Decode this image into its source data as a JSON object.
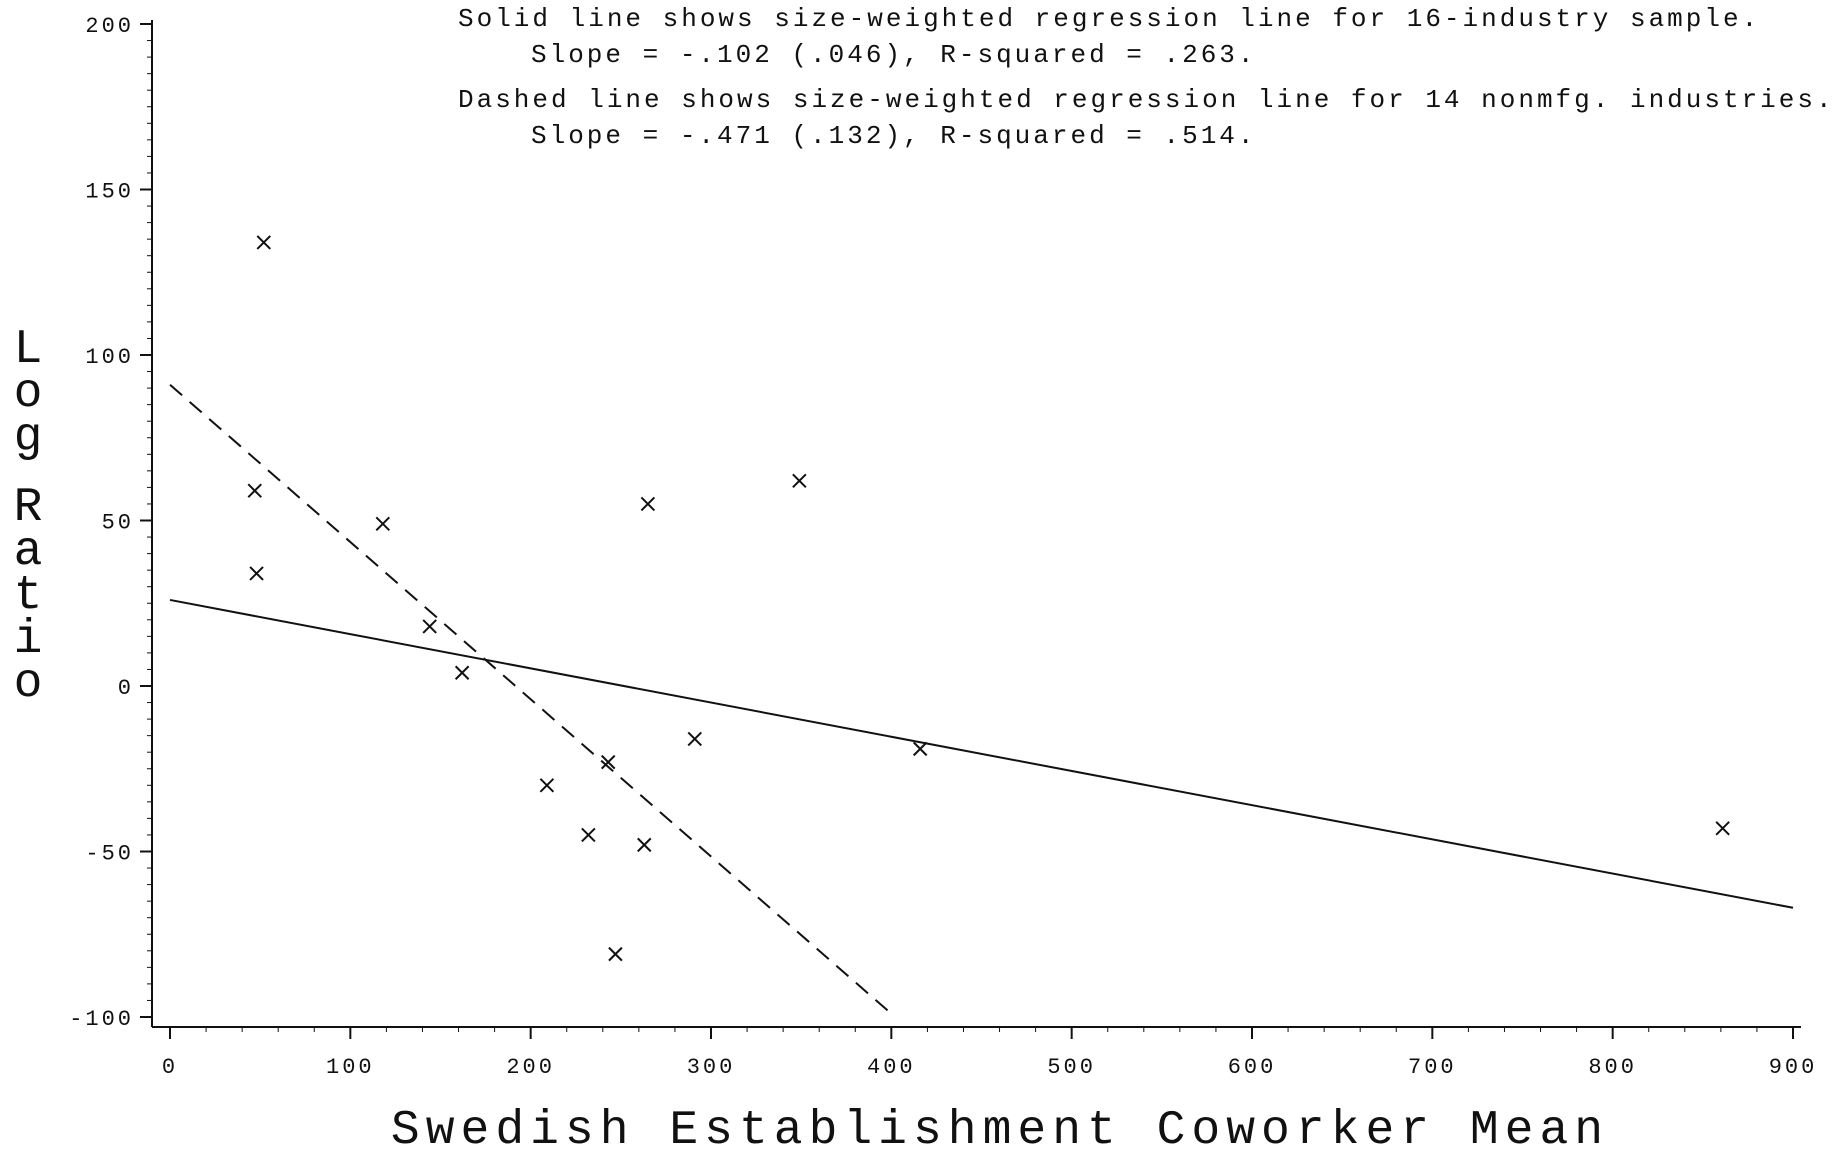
{
  "chart_data": {
    "type": "scatter",
    "xlabel": "Swedish Establishment Coworker Mean",
    "ylabel": "Log Ratio",
    "xlim": [
      0,
      900
    ],
    "ylim": [
      -100,
      200
    ],
    "x_ticks": [
      0,
      100,
      200,
      300,
      400,
      500,
      600,
      700,
      800,
      900
    ],
    "y_ticks": [
      -100,
      -50,
      0,
      50,
      100,
      150,
      200
    ],
    "annotations": [
      "Solid line shows size-weighted regression line for 16-industry sample.",
      "Slope = -.102 (.046), R-squared = .263.",
      "Dashed line shows size-weighted regression line for 14 nonmfg. industries.",
      "Slope = -.471 (.132), R-squared = .514."
    ],
    "points": [
      {
        "x": 52,
        "y": 134
      },
      {
        "x": 47,
        "y": 59
      },
      {
        "x": 48,
        "y": 34
      },
      {
        "x": 118,
        "y": 49
      },
      {
        "x": 144,
        "y": 18
      },
      {
        "x": 162,
        "y": 4
      },
      {
        "x": 209,
        "y": -30
      },
      {
        "x": 232,
        "y": -45
      },
      {
        "x": 243,
        "y": -23
      },
      {
        "x": 247,
        "y": -81
      },
      {
        "x": 263,
        "y": -48
      },
      {
        "x": 265,
        "y": 55
      },
      {
        "x": 291,
        "y": -16
      },
      {
        "x": 349,
        "y": 62
      },
      {
        "x": 416,
        "y": -19
      },
      {
        "x": 861,
        "y": -43
      }
    ],
    "lines": [
      {
        "style": "solid",
        "x": [
          0,
          900
        ],
        "y": [
          26,
          -67
        ]
      },
      {
        "style": "dashed",
        "x": [
          0,
          400
        ],
        "y": [
          91,
          -99
        ]
      }
    ],
    "marker": "x",
    "grid": false,
    "legend": "none"
  }
}
